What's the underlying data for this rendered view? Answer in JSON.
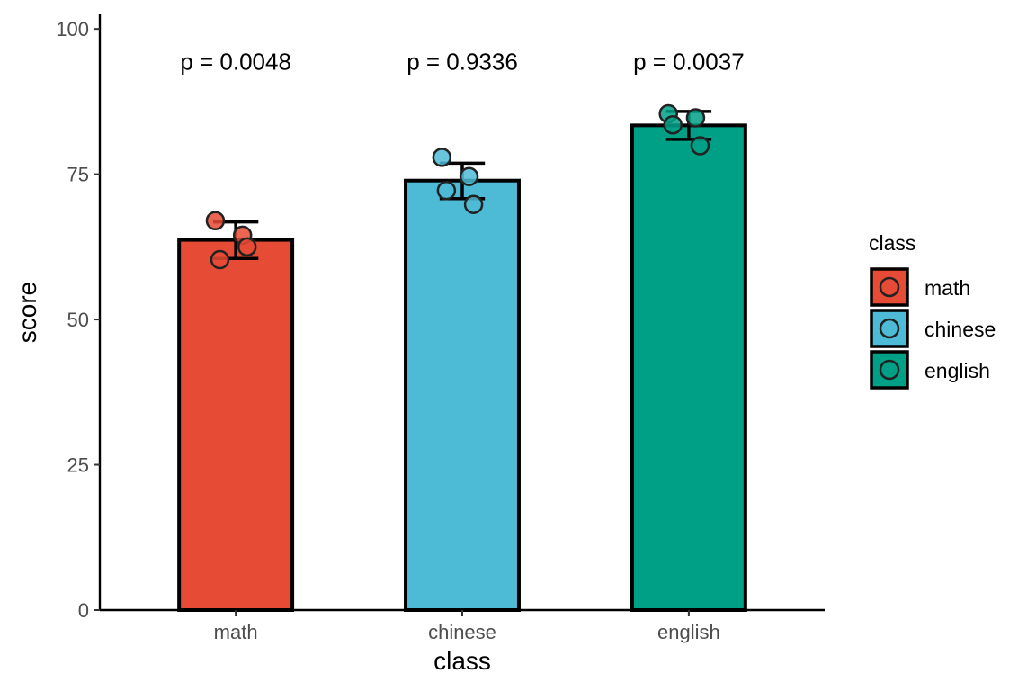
{
  "chart_data": {
    "type": "bar",
    "xlabel": "class",
    "ylabel": "score",
    "ylim": [
      0,
      102.5
    ],
    "yticks": [
      0,
      25,
      50,
      75,
      100
    ],
    "categories": [
      "math",
      "chinese",
      "english"
    ],
    "values": [
      63.7,
      73.9,
      83.4
    ],
    "error_low": [
      60.5,
      70.8,
      81.0
    ],
    "error_high": [
      66.8,
      76.9,
      85.8
    ],
    "points": [
      [
        67.0,
        64.5,
        60.3,
        62.5
      ],
      [
        77.9,
        74.6,
        72.2,
        69.8
      ],
      [
        85.4,
        84.7,
        83.5,
        79.9
      ]
    ],
    "annotations": [
      "p = 0.0048",
      "p = 0.9336",
      "p = 0.0037"
    ],
    "annotation_y": 93,
    "colors": [
      "#E64B35",
      "#4DBBD5",
      "#00A087"
    ],
    "legend": {
      "title": "class",
      "entries": [
        "math",
        "chinese",
        "english"
      ],
      "placement": "right"
    },
    "grid": false
  }
}
